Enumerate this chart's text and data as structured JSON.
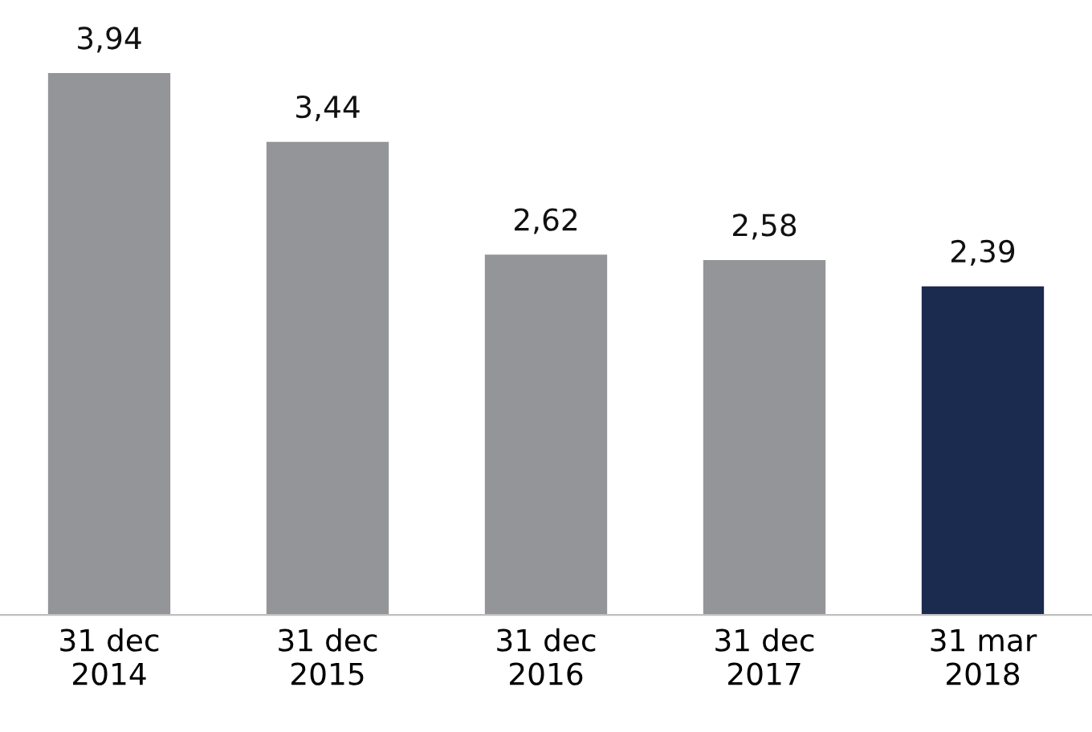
{
  "chart_data": {
    "type": "bar",
    "categories": [
      "31 dec\n2014",
      "31 dec\n2015",
      "31 dec\n2016",
      "31 dec\n2017",
      "31 mar\n2018"
    ],
    "values": [
      3.94,
      3.44,
      2.62,
      2.58,
      2.39
    ],
    "colors": [
      "#939598",
      "#939598",
      "#939598",
      "#939598",
      "#1b2a4f"
    ],
    "value_labels": [
      "3,94",
      "3,44",
      "2,62",
      "2,58",
      "2,39"
    ],
    "grid": false,
    "legend": false
  }
}
